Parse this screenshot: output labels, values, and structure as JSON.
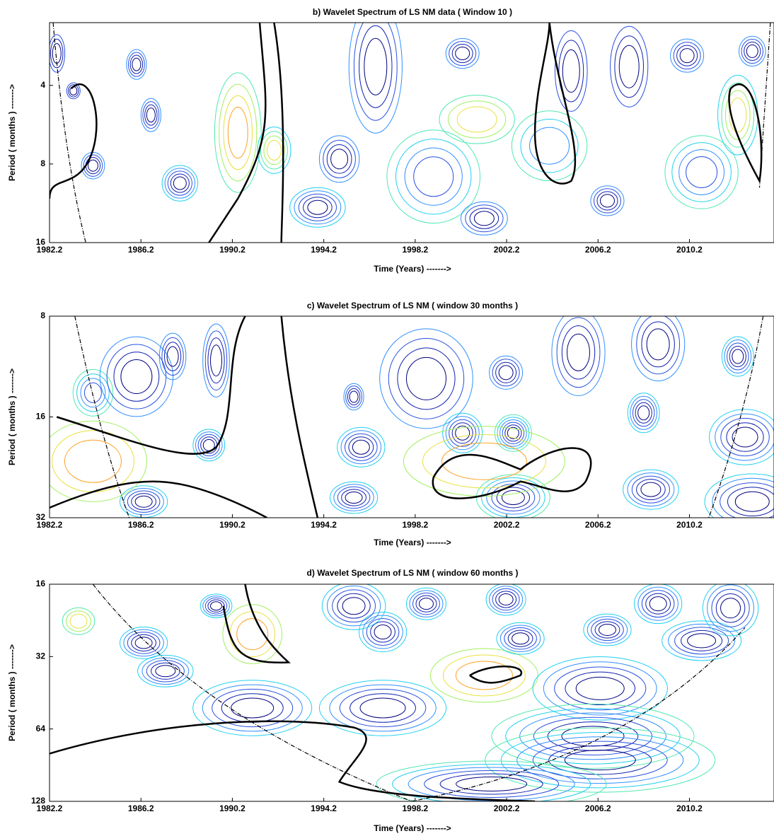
{
  "chart_data": [
    {
      "type": "contour",
      "title": "b) Wavelet Spectrum of  LS NM data ( Window 10 )",
      "xlabel": "Time (Years)  ------->",
      "ylabel": "Period ( months )  ------->",
      "xlim": [
        1982.2,
        2013.9
      ],
      "xticks": [
        1982.2,
        1986.2,
        1990.2,
        1994.2,
        1998.2,
        2002.2,
        2006.2,
        2010.2
      ],
      "ylim": [
        2.3,
        16
      ],
      "yticks": [
        4,
        8,
        16
      ],
      "log_y": true,
      "y_inverted": true
    },
    {
      "type": "contour",
      "title": "c) Wavelet Spectrum of  LS  NM ( window 30 months )",
      "xlabel": "Time (Years)  ------->",
      "ylabel": "Period ( months )  ------->",
      "xlim": [
        1982.2,
        2013.9
      ],
      "xticks": [
        1982.2,
        1986.2,
        1990.2,
        1994.2,
        1998.2,
        2002.2,
        2006.2,
        2010.2
      ],
      "ylim": [
        8,
        32
      ],
      "yticks": [
        8,
        16,
        32
      ],
      "log_y": true,
      "y_inverted": true
    },
    {
      "type": "contour",
      "title": "d) Wavelet Spectrum of  LS NM ( window 60 months )",
      "xlabel": "Time (Years) ------->",
      "ylabel": "Period ( months ) ------->",
      "xlim": [
        1982.2,
        2013.9
      ],
      "xticks": [
        1982.2,
        1986.2,
        1990.2,
        1994.2,
        1998.2,
        2002.2,
        2006.2,
        2010.2
      ],
      "ylim": [
        16,
        128
      ],
      "yticks": [
        16,
        32,
        64,
        128
      ],
      "log_y": true,
      "y_inverted": true
    }
  ]
}
